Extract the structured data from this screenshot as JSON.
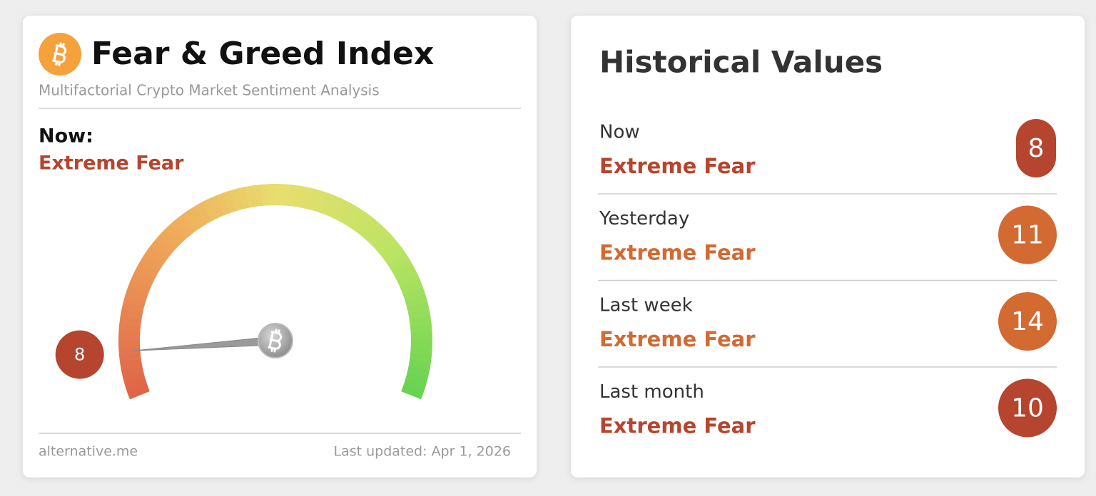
{
  "gauge": {
    "title": "Fear & Greed Index",
    "subtitle": "Multifactorial Crypto Market Sentiment Analysis",
    "now_label": "Now:",
    "classification": "Extreme Fear",
    "value": 8,
    "range": [
      0,
      100
    ],
    "color": "#b5452e",
    "source": "alternative.me",
    "updated": "Last updated: Apr 1, 2026"
  },
  "history": {
    "title": "Historical Values",
    "rows": [
      {
        "label": "Now",
        "classification": "Extreme Fear",
        "value": 8,
        "color": "#b5452e"
      },
      {
        "label": "Yesterday",
        "classification": "Extreme Fear",
        "value": 11,
        "color": "#d26a32"
      },
      {
        "label": "Last week",
        "classification": "Extreme Fear",
        "value": 14,
        "color": "#d26a32"
      },
      {
        "label": "Last month",
        "classification": "Extreme Fear",
        "value": 10,
        "color": "#b5452e"
      }
    ]
  }
}
